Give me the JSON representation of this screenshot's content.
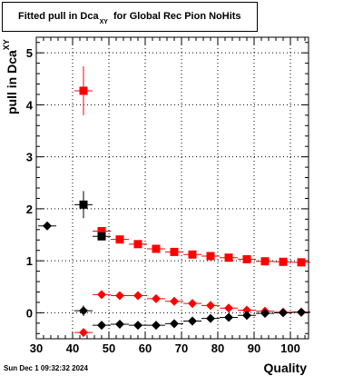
{
  "chart_data": {
    "type": "scatter",
    "title": "Fitted pull in Dca",
    "title_subscript": "XY",
    "title_suffix": "for Global Rec Pion NoHits",
    "xlabel": "Quality",
    "ylabel": "pull in Dca",
    "ylabel_subscript": "XY",
    "xlim": [
      30,
      105
    ],
    "ylim": [
      -0.5,
      5.3
    ],
    "xticks": [
      30,
      40,
      50,
      60,
      70,
      80,
      90,
      100
    ],
    "yticks": [
      0,
      1,
      2,
      3,
      4,
      5
    ],
    "grid": true,
    "series": [
      {
        "color": "#ff0000",
        "marker": "square",
        "points": [
          {
            "x": 43,
            "y": 4.27,
            "ey": 0.47,
            "ex": 2.5
          },
          {
            "x": 48,
            "y": 1.57,
            "ey": 0.06,
            "ex": 2.5
          },
          {
            "x": 53,
            "y": 1.41,
            "ey": 0.04,
            "ex": 2.5
          },
          {
            "x": 58,
            "y": 1.32,
            "ey": 0.04,
            "ex": 2.5
          },
          {
            "x": 63,
            "y": 1.23,
            "ey": 0.04,
            "ex": 2.5
          },
          {
            "x": 68,
            "y": 1.17,
            "ey": 0.03,
            "ex": 2.5
          },
          {
            "x": 73,
            "y": 1.12,
            "ey": 0.03,
            "ex": 2.5
          },
          {
            "x": 78,
            "y": 1.09,
            "ey": 0.03,
            "ex": 2.5
          },
          {
            "x": 83,
            "y": 1.06,
            "ey": 0.03,
            "ex": 2.5
          },
          {
            "x": 88,
            "y": 1.03,
            "ey": 0.03,
            "ex": 2.5
          },
          {
            "x": 93,
            "y": 0.99,
            "ey": 0.03,
            "ex": 2.5
          },
          {
            "x": 98,
            "y": 0.98,
            "ey": 0.03,
            "ex": 2.5
          },
          {
            "x": 103,
            "y": 0.97,
            "ey": 0.03,
            "ex": 2.5
          }
        ]
      },
      {
        "color": "#000000",
        "marker": "square",
        "points": [
          {
            "x": 43,
            "y": 2.08,
            "ey": 0.26,
            "ex": 2.5
          },
          {
            "x": 48,
            "y": 1.47,
            "ey": 0.05,
            "ex": 2.5
          }
        ]
      },
      {
        "color": "#ff0000",
        "marker": "diamond",
        "points": [
          {
            "x": 43,
            "y": -0.38,
            "ey": 0.06,
            "ex": 2.5
          },
          {
            "x": 48,
            "y": 0.35,
            "ey": 0.04,
            "ex": 2.5
          },
          {
            "x": 53,
            "y": 0.33,
            "ey": 0.03,
            "ex": 2.5
          },
          {
            "x": 58,
            "y": 0.33,
            "ey": 0.03,
            "ex": 2.5
          },
          {
            "x": 63,
            "y": 0.27,
            "ey": 0.03,
            "ex": 2.5
          },
          {
            "x": 68,
            "y": 0.22,
            "ey": 0.03,
            "ex": 2.5
          },
          {
            "x": 73,
            "y": 0.18,
            "ey": 0.03,
            "ex": 2.5
          },
          {
            "x": 78,
            "y": 0.14,
            "ey": 0.03,
            "ex": 2.5
          },
          {
            "x": 83,
            "y": 0.09,
            "ey": 0.03,
            "ex": 2.5
          },
          {
            "x": 88,
            "y": 0.05,
            "ey": 0.03,
            "ex": 2.5
          },
          {
            "x": 93,
            "y": 0.03,
            "ey": 0.03,
            "ex": 2.5
          },
          {
            "x": 98,
            "y": 0.01,
            "ey": 0.03,
            "ex": 2.5
          },
          {
            "x": 103,
            "y": 0.01,
            "ey": 0.03,
            "ex": 2.5
          }
        ]
      },
      {
        "color": "#000000",
        "marker": "diamond",
        "points": [
          {
            "x": 33,
            "y": 1.67,
            "ey": 0.04,
            "ex": 2.5
          },
          {
            "x": 43,
            "y": 0.04,
            "ey": 0.1,
            "ex": 2.5
          },
          {
            "x": 48,
            "y": -0.24,
            "ey": 0.04,
            "ex": 2.5
          },
          {
            "x": 53,
            "y": -0.22,
            "ey": 0.03,
            "ex": 2.5
          },
          {
            "x": 58,
            "y": -0.24,
            "ey": 0.03,
            "ex": 2.5
          },
          {
            "x": 63,
            "y": -0.24,
            "ey": 0.03,
            "ex": 2.5
          },
          {
            "x": 68,
            "y": -0.21,
            "ey": 0.03,
            "ex": 2.5
          },
          {
            "x": 73,
            "y": -0.16,
            "ey": 0.03,
            "ex": 2.5
          },
          {
            "x": 78,
            "y": -0.11,
            "ey": 0.03,
            "ex": 2.5
          },
          {
            "x": 83,
            "y": -0.09,
            "ey": 0.03,
            "ex": 2.5
          },
          {
            "x": 88,
            "y": -0.05,
            "ey": 0.03,
            "ex": 2.5
          },
          {
            "x": 93,
            "y": -0.01,
            "ey": 0.03,
            "ex": 2.5
          },
          {
            "x": 98,
            "y": 0.0,
            "ey": 0.03,
            "ex": 2.5
          },
          {
            "x": 103,
            "y": 0.01,
            "ey": 0.03,
            "ex": 2.5
          }
        ]
      }
    ]
  },
  "footer": {
    "timestamp": "Sun Dec  1 09:32:32 2024"
  }
}
